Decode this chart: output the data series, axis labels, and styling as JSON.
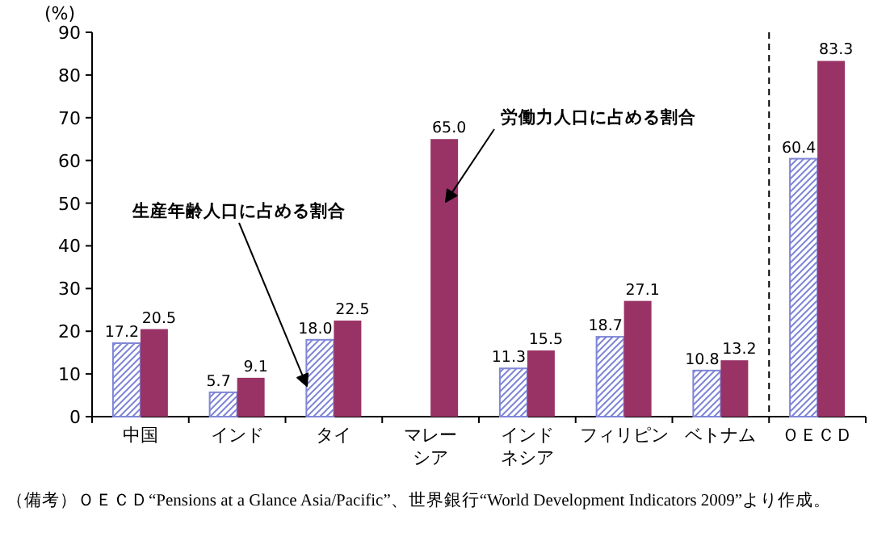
{
  "chart_data": {
    "type": "bar",
    "ylabel": "(%)",
    "categories": [
      "中国",
      "インド",
      "タイ",
      "マレーシア",
      "インドネシア",
      "フィリピン",
      "ベトナム",
      "ＯＥＣＤ"
    ],
    "series": [
      {
        "color": "#7f86d6",
        "values": [
          17.2,
          5.7,
          18.0,
          null,
          11.3,
          18.7,
          10.8,
          60.4
        ],
        "value_labels": [
          "17.2",
          "5.7",
          "18.0",
          null,
          "11.3",
          "18.7",
          "10.8",
          "60.4"
        ]
      },
      {
        "color": "#993366",
        "values": [
          20.5,
          9.1,
          22.5,
          65.0,
          15.5,
          27.1,
          13.2,
          83.3
        ],
        "value_labels": [
          "20.5",
          "9.1",
          "22.5",
          "65.0",
          "15.5",
          "27.1",
          "13.2",
          "83.3"
        ]
      }
    ],
    "ylim": [
      0,
      90
    ],
    "yticks": [
      0,
      10,
      20,
      30,
      40,
      50,
      60,
      70,
      80,
      90
    ],
    "annotations": [
      "労働力人口に占める割合",
      "生産年齢人口に占める割合",
      "（備考）ＯＥＣＤ“Pensions at a Glance Asia/Pacific”、世界銀行“World Development Indicators 2009”より作成。"
    ]
  }
}
